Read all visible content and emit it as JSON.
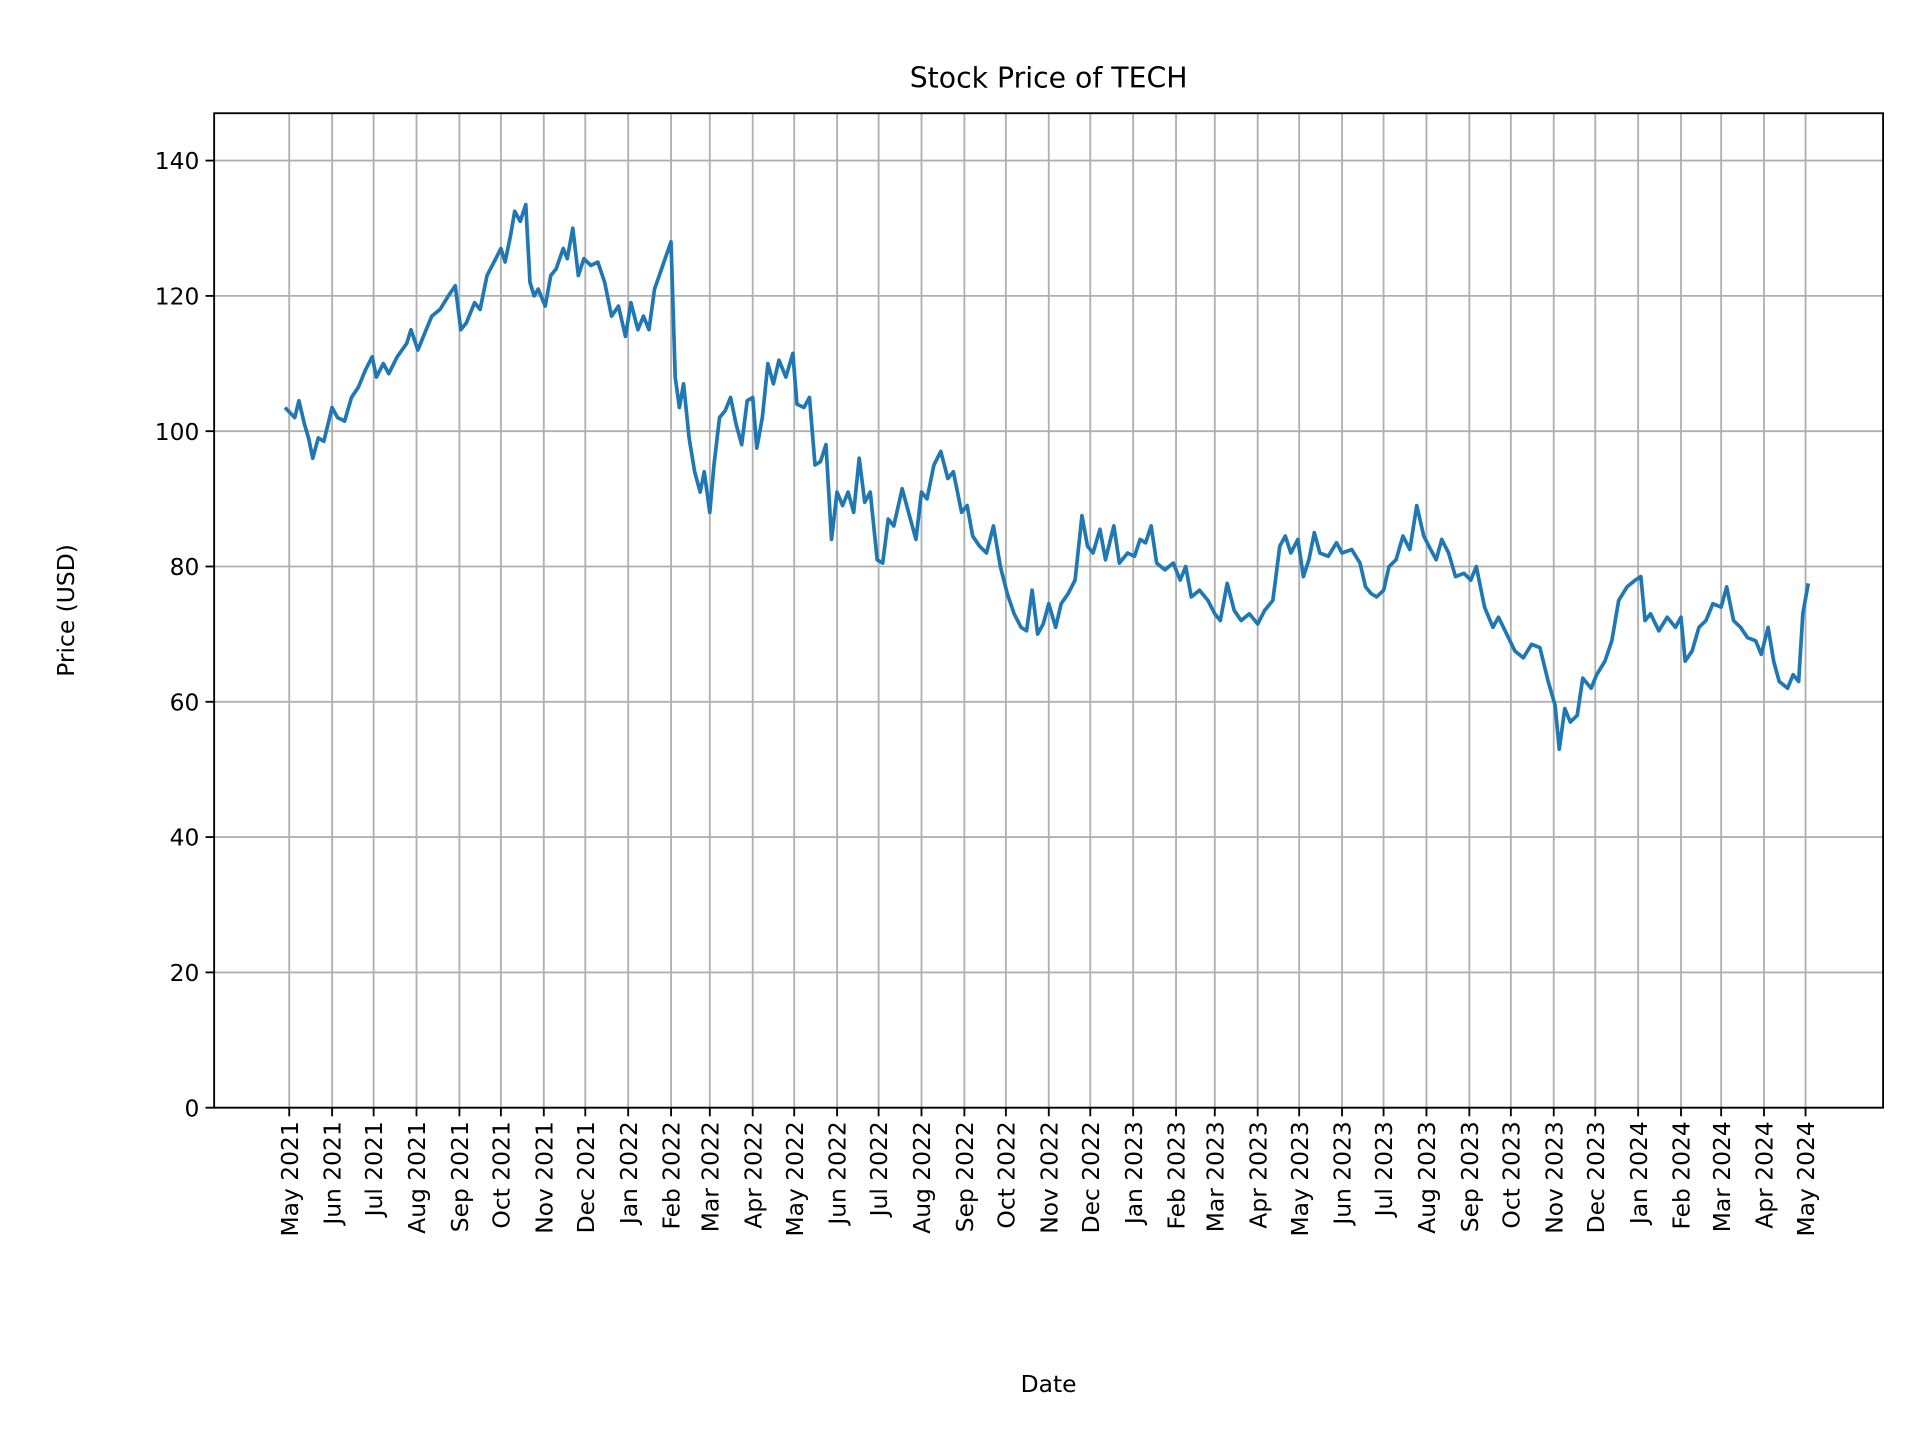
{
  "chart_data": {
    "type": "line",
    "title": "Stock Price of TECH",
    "xlabel": "Date",
    "ylabel": "Price (USD)",
    "ylim": [
      0,
      147
    ],
    "xlim": [
      "2021-03-19",
      "2024-06-02"
    ],
    "grid": true,
    "line_color": "#1f77b4",
    "yticks": [
      0,
      20,
      40,
      60,
      80,
      100,
      120,
      140
    ],
    "xticks": [
      {
        "date": "2021-05-01",
        "label": "May 2021"
      },
      {
        "date": "2021-06-01",
        "label": "Jun 2021"
      },
      {
        "date": "2021-07-01",
        "label": "Jul 2021"
      },
      {
        "date": "2021-08-01",
        "label": "Aug 2021"
      },
      {
        "date": "2021-09-01",
        "label": "Sep 2021"
      },
      {
        "date": "2021-10-01",
        "label": "Oct 2021"
      },
      {
        "date": "2021-11-01",
        "label": "Nov 2021"
      },
      {
        "date": "2021-12-01",
        "label": "Dec 2021"
      },
      {
        "date": "2022-01-01",
        "label": "Jan 2022"
      },
      {
        "date": "2022-02-01",
        "label": "Feb 2022"
      },
      {
        "date": "2022-03-01",
        "label": "Mar 2022"
      },
      {
        "date": "2022-04-01",
        "label": "Apr 2022"
      },
      {
        "date": "2022-05-01",
        "label": "May 2022"
      },
      {
        "date": "2022-06-01",
        "label": "Jun 2022"
      },
      {
        "date": "2022-07-01",
        "label": "Jul 2022"
      },
      {
        "date": "2022-08-01",
        "label": "Aug 2022"
      },
      {
        "date": "2022-09-01",
        "label": "Sep 2022"
      },
      {
        "date": "2022-10-01",
        "label": "Oct 2022"
      },
      {
        "date": "2022-11-01",
        "label": "Nov 2022"
      },
      {
        "date": "2022-12-01",
        "label": "Dec 2022"
      },
      {
        "date": "2023-01-01",
        "label": "Jan 2023"
      },
      {
        "date": "2023-02-01",
        "label": "Feb 2023"
      },
      {
        "date": "2023-03-01",
        "label": "Mar 2023"
      },
      {
        "date": "2023-04-01",
        "label": "Apr 2023"
      },
      {
        "date": "2023-05-01",
        "label": "May 2023"
      },
      {
        "date": "2023-06-01",
        "label": "Jun 2023"
      },
      {
        "date": "2023-07-01",
        "label": "Jul 2023"
      },
      {
        "date": "2023-08-01",
        "label": "Aug 2023"
      },
      {
        "date": "2023-09-01",
        "label": "Sep 2023"
      },
      {
        "date": "2023-10-01",
        "label": "Oct 2023"
      },
      {
        "date": "2023-11-01",
        "label": "Nov 2023"
      },
      {
        "date": "2023-12-01",
        "label": "Dec 2023"
      },
      {
        "date": "2024-01-01",
        "label": "Jan 2024"
      },
      {
        "date": "2024-02-01",
        "label": "Feb 2024"
      },
      {
        "date": "2024-03-01",
        "label": "Mar 2024"
      },
      {
        "date": "2024-04-01",
        "label": "Apr 2024"
      },
      {
        "date": "2024-05-01",
        "label": "May 2024"
      }
    ],
    "series": [
      {
        "x": [
          "2021-04-28",
          "2021-05-05",
          "2021-05-08",
          "2021-05-12",
          "2021-05-15",
          "2021-05-18",
          "2021-05-22",
          "2021-05-26",
          "2021-06-01",
          "2021-06-05",
          "2021-06-10",
          "2021-06-15",
          "2021-06-20",
          "2021-06-25",
          "2021-06-30",
          "2021-07-03",
          "2021-07-08",
          "2021-07-12",
          "2021-07-18",
          "2021-07-25",
          "2021-07-28",
          "2021-08-02",
          "2021-08-06",
          "2021-08-12",
          "2021-08-18",
          "2021-08-24",
          "2021-08-29",
          "2021-09-02",
          "2021-09-06",
          "2021-09-12",
          "2021-09-16",
          "2021-09-21",
          "2021-09-26",
          "2021-10-01",
          "2021-10-04",
          "2021-10-08",
          "2021-10-11",
          "2021-10-15",
          "2021-10-19",
          "2021-10-22",
          "2021-10-25",
          "2021-10-28",
          "2021-11-02",
          "2021-11-06",
          "2021-11-10",
          "2021-11-15",
          "2021-11-18",
          "2021-11-22",
          "2021-11-26",
          "2021-11-30",
          "2021-12-05",
          "2021-12-10",
          "2021-12-15",
          "2021-12-20",
          "2021-12-25",
          "2021-12-30",
          "2022-01-03",
          "2022-01-08",
          "2022-01-12",
          "2022-01-16",
          "2022-01-20",
          "2022-01-26",
          "2022-02-01",
          "2022-02-04",
          "2022-02-07",
          "2022-02-10",
          "2022-02-14",
          "2022-02-18",
          "2022-02-22",
          "2022-02-25",
          "2022-03-01",
          "2022-03-04",
          "2022-03-08",
          "2022-03-12",
          "2022-03-16",
          "2022-03-20",
          "2022-03-24",
          "2022-03-28",
          "2022-04-01",
          "2022-04-04",
          "2022-04-08",
          "2022-04-12",
          "2022-04-16",
          "2022-04-20",
          "2022-04-25",
          "2022-04-30",
          "2022-05-03",
          "2022-05-08",
          "2022-05-12",
          "2022-05-16",
          "2022-05-20",
          "2022-05-24",
          "2022-05-28",
          "2022-06-01",
          "2022-06-05",
          "2022-06-09",
          "2022-06-13",
          "2022-06-17",
          "2022-06-21",
          "2022-06-25",
          "2022-06-30",
          "2022-07-04",
          "2022-07-08",
          "2022-07-12",
          "2022-07-18",
          "2022-07-24",
          "2022-07-28",
          "2022-08-01",
          "2022-08-05",
          "2022-08-10",
          "2022-08-15",
          "2022-08-20",
          "2022-08-24",
          "2022-08-30",
          "2022-09-03",
          "2022-09-07",
          "2022-09-12",
          "2022-09-17",
          "2022-09-22",
          "2022-09-27",
          "2022-10-02",
          "2022-10-07",
          "2022-10-12",
          "2022-10-16",
          "2022-10-20",
          "2022-10-24",
          "2022-10-28",
          "2022-11-01",
          "2022-11-06",
          "2022-11-10",
          "2022-11-15",
          "2022-11-20",
          "2022-11-25",
          "2022-11-29",
          "2022-12-03",
          "2022-12-08",
          "2022-12-12",
          "2022-12-18",
          "2022-12-22",
          "2022-12-28",
          "2023-01-02",
          "2023-01-06",
          "2023-01-10",
          "2023-01-14",
          "2023-01-18",
          "2023-01-24",
          "2023-01-30",
          "2023-02-04",
          "2023-02-08",
          "2023-02-12",
          "2023-02-18",
          "2023-02-24",
          "2023-03-01",
          "2023-03-05",
          "2023-03-10",
          "2023-03-15",
          "2023-03-20",
          "2023-03-26",
          "2023-04-01",
          "2023-04-06",
          "2023-04-12",
          "2023-04-17",
          "2023-04-21",
          "2023-04-25",
          "2023-04-30",
          "2023-05-04",
          "2023-05-08",
          "2023-05-12",
          "2023-05-16",
          "2023-05-22",
          "2023-05-28",
          "2023-06-01",
          "2023-06-08",
          "2023-06-14",
          "2023-06-18",
          "2023-06-22",
          "2023-06-26",
          "2023-07-01",
          "2023-07-05",
          "2023-07-10",
          "2023-07-15",
          "2023-07-20",
          "2023-07-25",
          "2023-07-30",
          "2023-08-04",
          "2023-08-08",
          "2023-08-12",
          "2023-08-17",
          "2023-08-22",
          "2023-08-28",
          "2023-09-02",
          "2023-09-06",
          "2023-09-12",
          "2023-09-18",
          "2023-09-22",
          "2023-09-28",
          "2023-10-04",
          "2023-10-10",
          "2023-10-16",
          "2023-10-22",
          "2023-10-28",
          "2023-11-02",
          "2023-11-05",
          "2023-11-09",
          "2023-11-13",
          "2023-11-18",
          "2023-11-22",
          "2023-11-28",
          "2023-12-02",
          "2023-12-08",
          "2023-12-13",
          "2023-12-18",
          "2023-12-24",
          "2023-12-30",
          "2024-01-03",
          "2024-01-06",
          "2024-01-10",
          "2024-01-16",
          "2024-01-22",
          "2024-01-28",
          "2024-02-01",
          "2024-02-04",
          "2024-02-09",
          "2024-02-14",
          "2024-02-19",
          "2024-02-24",
          "2024-03-01",
          "2024-03-05",
          "2024-03-10",
          "2024-03-15",
          "2024-03-20",
          "2024-03-26",
          "2024-03-30",
          "2024-04-04",
          "2024-04-08",
          "2024-04-12",
          "2024-04-18",
          "2024-04-22",
          "2024-04-26",
          "2024-04-29",
          "2024-05-03"
        ],
        "y": [
          103.5,
          102,
          104.5,
          101,
          99,
          96,
          99,
          98.5,
          103.5,
          102,
          101.5,
          105,
          106.5,
          109,
          111,
          108,
          110,
          108.5,
          111,
          113,
          115,
          112,
          114,
          117,
          118,
          120,
          121.5,
          115,
          116,
          119,
          118,
          123,
          125,
          127,
          125,
          129,
          132.5,
          131,
          133.5,
          122,
          120,
          121,
          118.5,
          123,
          124,
          127,
          125.5,
          130,
          123,
          125.5,
          124.5,
          125,
          122,
          117,
          118.5,
          114,
          119,
          115,
          117,
          115,
          121,
          124.5,
          128,
          108,
          103.5,
          107,
          99,
          94,
          91,
          94,
          88,
          95,
          102,
          103,
          105,
          101,
          98,
          104.5,
          105,
          97.5,
          102,
          110,
          107,
          110.5,
          108,
          111.5,
          104,
          103.5,
          105,
          95,
          95.5,
          98,
          84,
          91,
          89,
          91,
          88,
          96,
          89.5,
          91,
          81,
          80.5,
          87,
          86,
          91.5,
          87,
          84,
          91,
          90,
          95,
          97,
          93,
          94,
          88,
          89,
          84.5,
          83,
          82,
          86,
          80,
          76,
          73,
          71,
          70.5,
          76.5,
          70,
          71.5,
          74.5,
          71,
          74.5,
          76,
          78,
          87.5,
          83,
          82,
          85.5,
          81,
          86,
          80.5,
          82,
          81.5,
          84,
          83.5,
          86,
          80.5,
          79.5,
          80.5,
          78,
          80,
          75.5,
          76.5,
          75,
          73,
          72,
          77.5,
          73.5,
          72,
          73,
          71.5,
          73.5,
          75,
          83,
          84.5,
          82,
          84,
          78.5,
          81,
          85,
          82,
          81.5,
          83.5,
          82,
          82.5,
          80.5,
          77,
          76,
          75.5,
          76.5,
          80,
          81,
          84.5,
          82.5,
          89,
          84.5,
          82.5,
          81,
          84,
          82,
          78.5,
          79,
          78,
          80,
          74,
          71,
          72.5,
          70,
          67.5,
          66.5,
          68.5,
          68,
          63,
          59.5,
          53,
          59,
          57,
          58,
          63.5,
          62,
          64,
          66,
          69,
          75,
          77,
          78,
          78.5,
          72,
          73,
          70.5,
          72.5,
          71,
          72.5,
          66,
          67.5,
          71,
          72,
          74.5,
          74,
          77,
          72,
          71,
          69.5,
          69,
          67,
          71,
          66,
          63,
          62,
          64,
          63,
          73,
          77.5
        ]
      }
    ]
  }
}
